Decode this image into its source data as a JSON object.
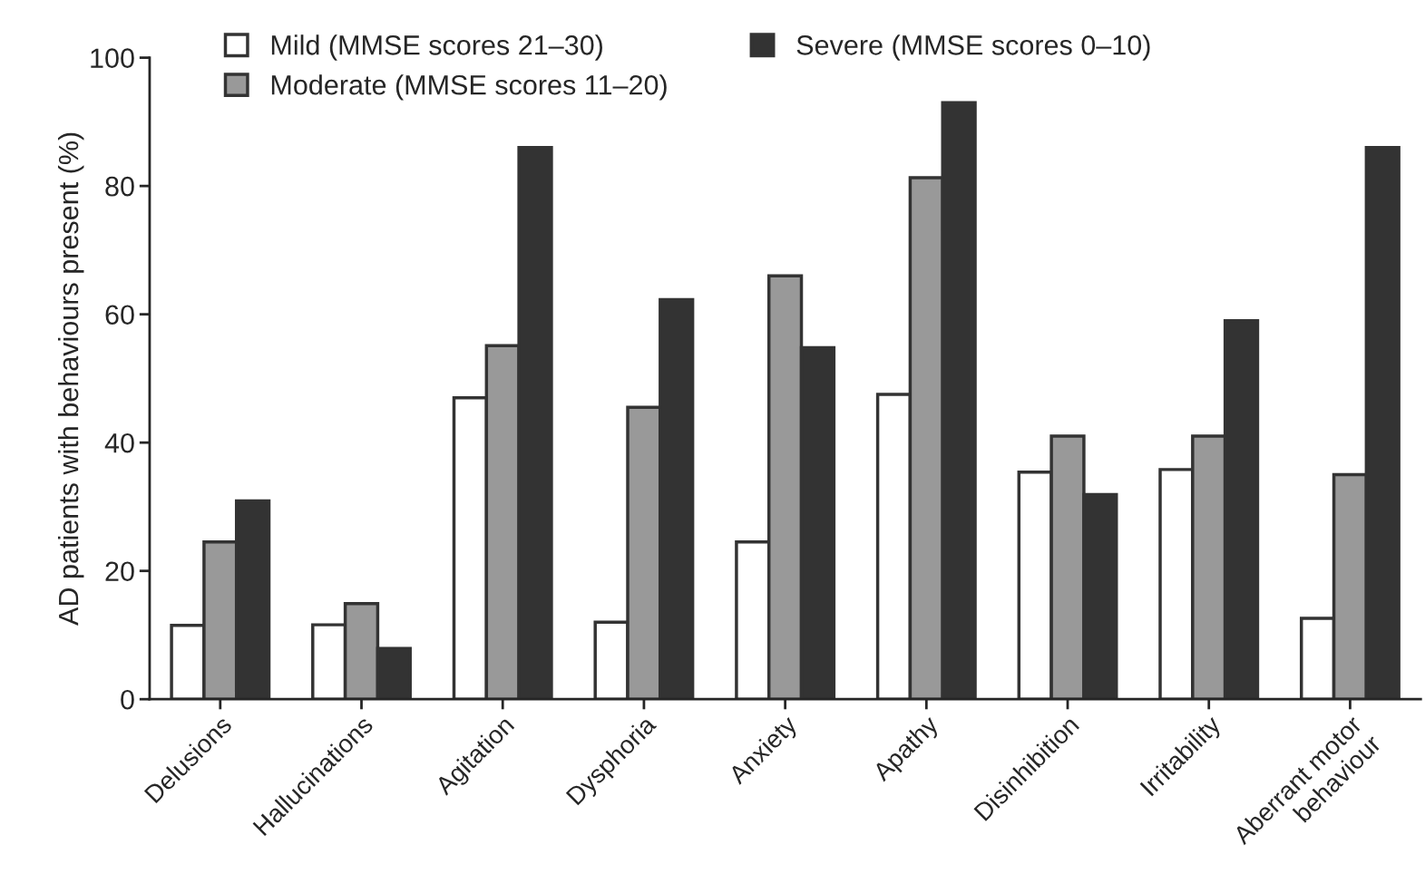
{
  "chart_data": {
    "type": "bar",
    "ylabel": "AD patients with behaviours present (%)",
    "categories": [
      "Delusions",
      "Hallucinations",
      "Agitation",
      "Dysphoria",
      "Anxiety",
      "Apathy",
      "Disinhibition",
      "Irritability",
      "Aberrant motor\nbehaviour"
    ],
    "series": [
      {
        "name": "Mild (MMSE scores 21–30)",
        "color": "#ffffff",
        "values": [
          11.5,
          11.6,
          47,
          12,
          24.5,
          47.5,
          35.4,
          35.8,
          12.6
        ]
      },
      {
        "name": "Moderate (MMSE scores 11–20)",
        "color": "#999999",
        "values": [
          24.5,
          14.9,
          55.1,
          45.5,
          66,
          81.3,
          41,
          41,
          35
        ]
      },
      {
        "name": "Severe (MMSE scores 0–10)",
        "color": "#333333",
        "values": [
          30.9,
          7.9,
          86,
          62.3,
          54.8,
          93,
          31.9,
          59,
          86
        ]
      }
    ],
    "ylim": [
      0,
      100
    ],
    "yticks": [
      0,
      20,
      40,
      60,
      80,
      100
    ],
    "grid": false,
    "legend": "top"
  }
}
